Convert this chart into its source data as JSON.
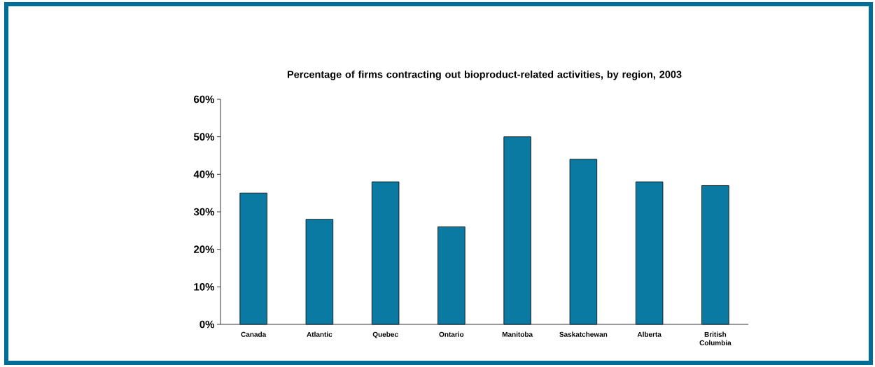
{
  "chart_data": {
    "type": "bar",
    "title": "Percentage of firms contracting out bioproduct-related activities, by region, 2003",
    "categories": [
      "Canada",
      "Atlantic",
      "Quebec",
      "Ontario",
      "Manitoba",
      "Saskatchewan",
      "Alberta",
      "British Columbia"
    ],
    "values": [
      35,
      28,
      38,
      26,
      50,
      44,
      38,
      37
    ],
    "color": "#0a7aa3",
    "ylim": [
      0,
      60
    ],
    "yticks": [
      {
        "value": 0,
        "label": "0%"
      },
      {
        "value": 10,
        "label": "10%"
      },
      {
        "value": 20,
        "label": "20%"
      },
      {
        "value": 30,
        "label": "30%"
      },
      {
        "value": 40,
        "label": "40%"
      },
      {
        "value": 50,
        "label": "50%"
      },
      {
        "value": 60,
        "label": "60%"
      }
    ]
  }
}
